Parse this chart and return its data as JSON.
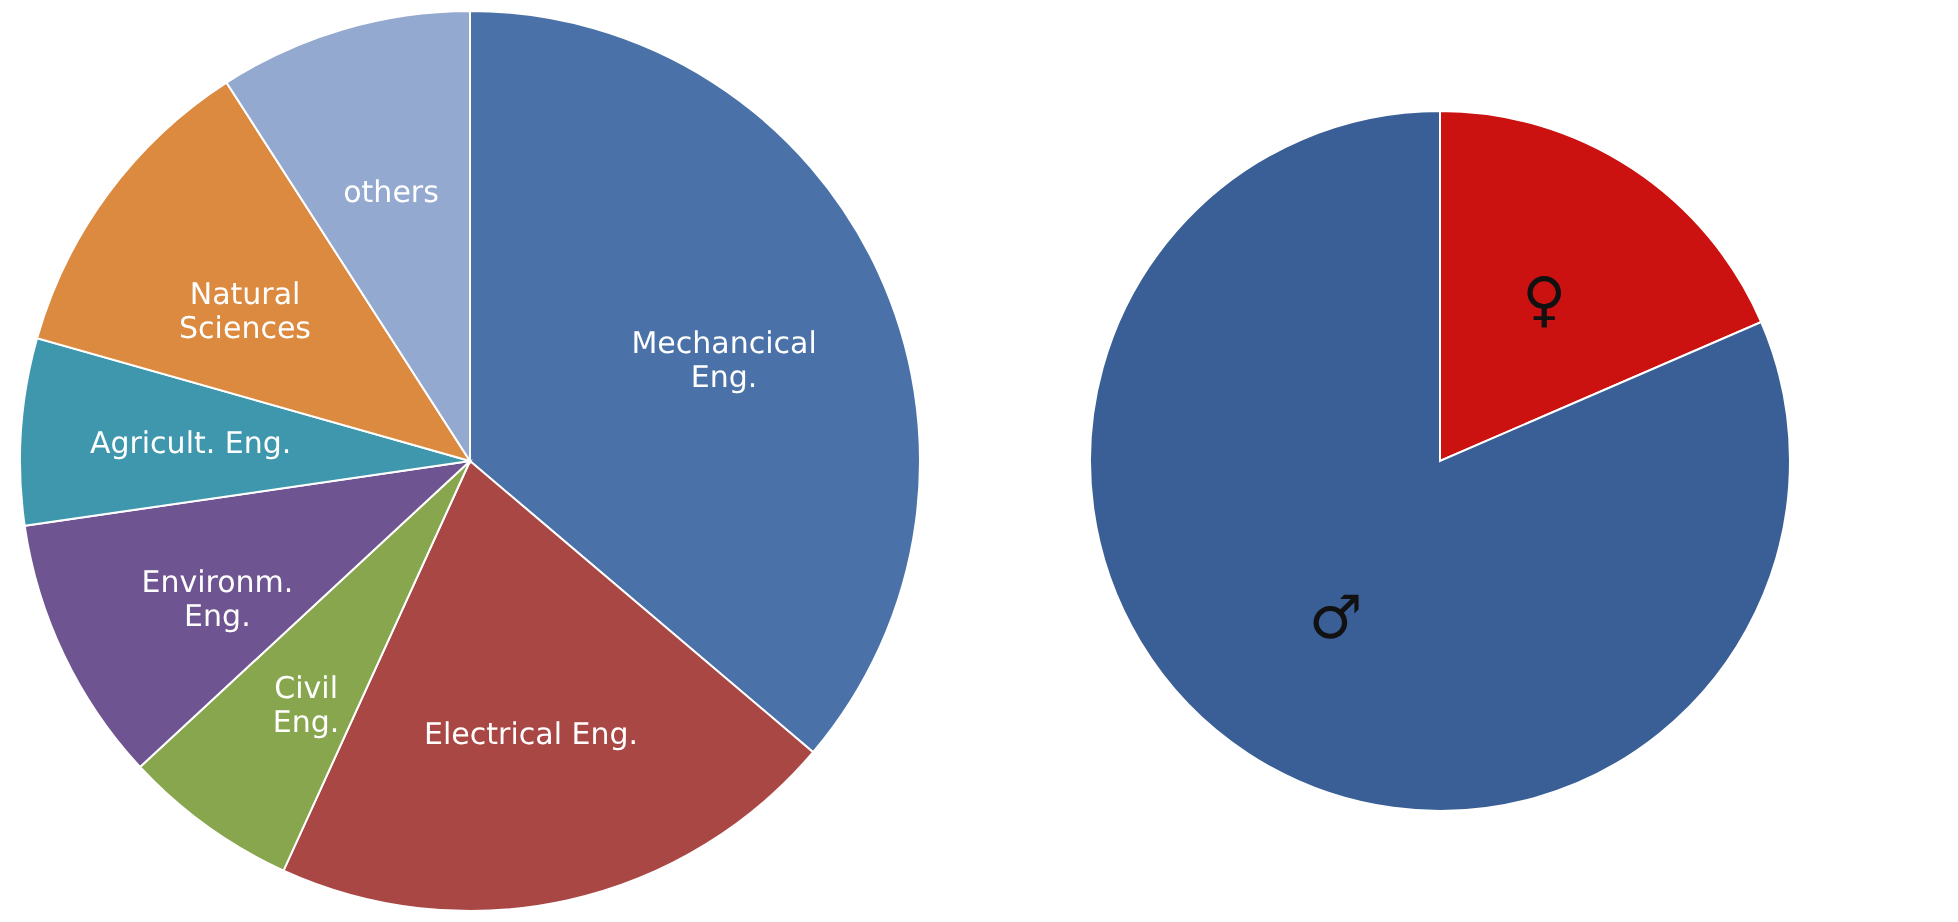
{
  "chart_data": [
    {
      "type": "pie",
      "categories": [
        "Mechancical\nEng.",
        "Electrical Eng.",
        "Civil\nEng.",
        "Environm.\nEng.",
        "Agricult. Eng.",
        "Natural\nSciences",
        "others"
      ],
      "values": [
        36.2,
        20.6,
        6.3,
        9.6,
        6.7,
        11.5,
        9.1
      ],
      "colors": [
        "#4a71a8",
        "#a94745",
        "#88a64e",
        "#6e5490",
        "#3f97ae",
        "#db8a40",
        "#93a9d0"
      ],
      "legend": false
    },
    {
      "type": "pie",
      "categories": [
        "♀",
        "♂"
      ],
      "values": [
        18.5,
        81.5
      ],
      "colors": [
        "#cc1111",
        "#3a5f96"
      ],
      "legend": false
    }
  ]
}
